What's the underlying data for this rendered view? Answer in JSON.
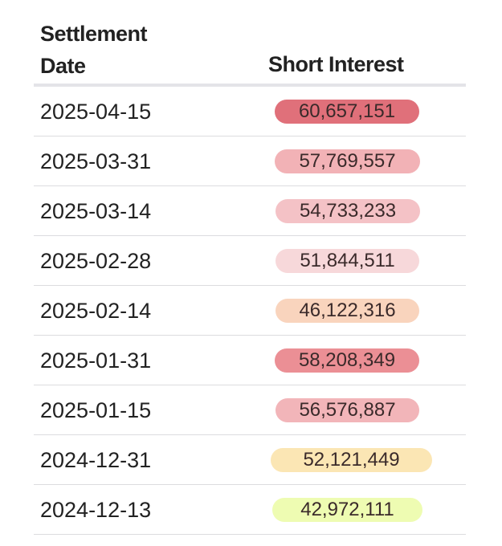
{
  "header": {
    "date_line1": "Settlement",
    "date_line2": "Date",
    "short_interest": "Short Interest"
  },
  "rows": [
    {
      "date": "2025-04-15",
      "value": "60,657,151",
      "color": "#e0707a"
    },
    {
      "date": "2025-03-31",
      "value": "57,769,557",
      "color": "#f2b2b6"
    },
    {
      "date": "2025-03-14",
      "value": "54,733,233",
      "color": "#f4c2c6"
    },
    {
      "date": "2025-02-28",
      "value": "51,844,511",
      "color": "#f7d8da"
    },
    {
      "date": "2025-02-14",
      "value": "46,122,316",
      "color": "#f9d4bd"
    },
    {
      "date": "2025-01-31",
      "value": "58,208,349",
      "color": "#eb8f95"
    },
    {
      "date": "2025-01-15",
      "value": "56,576,887",
      "color": "#f2b5b9"
    },
    {
      "date": "2024-12-31",
      "value": "52,121,449",
      "color": "#fbe6b4"
    },
    {
      "date": "2024-12-13",
      "value": "42,972,111",
      "color": "#eefcb2"
    }
  ]
}
